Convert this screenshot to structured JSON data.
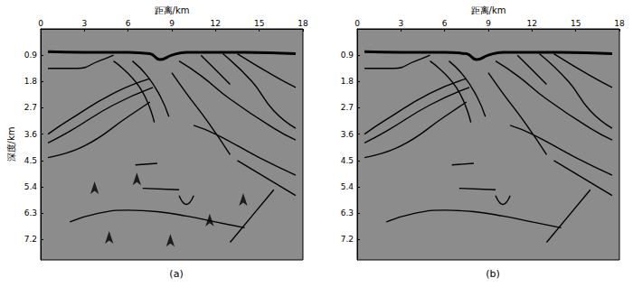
{
  "chart_data": [
    {
      "type": "line",
      "title": "(a)",
      "xlabel": "距离/km",
      "ylabel": "深度/km",
      "xlim": [
        0,
        18
      ],
      "xticks": [
        0,
        3,
        6,
        9,
        12,
        15,
        18
      ],
      "ylim": [
        0,
        7.9
      ],
      "yticks": [
        0.9,
        1.8,
        2.7,
        3.6,
        4.5,
        5.4,
        6.3,
        7.2
      ],
      "series": [
        {
          "color": "#000000",
          "values": [
            [
              0.5,
              0.78
            ],
            [
              3,
              0.8
            ],
            [
              6,
              0.8
            ],
            [
              7.5,
              0.85
            ],
            [
              8.2,
              1.05
            ],
            [
              9,
              0.9
            ],
            [
              10,
              0.8
            ],
            [
              12,
              0.8
            ],
            [
              14,
              0.8
            ],
            [
              17.5,
              0.85
            ]
          ]
        },
        {
          "color": "#000000",
          "values": [
            [
              0.5,
              1.35
            ],
            [
              2.5,
              1.35
            ],
            [
              4,
              1.1
            ],
            [
              5,
              0.9
            ]
          ]
        },
        {
          "color": "#000000",
          "values": [
            [
              7.5,
              1.7
            ],
            [
              5,
              2.2
            ],
            [
              2,
              3.1
            ],
            [
              0.5,
              3.6
            ]
          ]
        },
        {
          "color": "#000000",
          "values": [
            [
              7.7,
              2.0
            ],
            [
              5,
              2.6
            ],
            [
              2,
              3.5
            ],
            [
              0.5,
              3.9
            ]
          ]
        },
        {
          "color": "#000000",
          "values": [
            [
              7.5,
              2.5
            ],
            [
              6,
              3.0
            ],
            [
              3,
              4.0
            ],
            [
              0.5,
              4.4
            ]
          ]
        },
        {
          "color": "#000000",
          "values": [
            [
              6.3,
              1.1
            ],
            [
              7.3,
              1.6
            ],
            [
              8.2,
              2.3
            ],
            [
              8.8,
              3.0
            ]
          ]
        },
        {
          "color": "#000000",
          "values": [
            [
              5,
              1.1
            ],
            [
              6.8,
              2.0
            ],
            [
              7.8,
              3.2
            ]
          ]
        },
        {
          "color": "#000000",
          "values": [
            [
              9.5,
              1.1
            ],
            [
              11,
              1.6
            ],
            [
              13,
              2.4
            ],
            [
              16,
              3.4
            ],
            [
              17.5,
              3.8
            ]
          ]
        },
        {
          "color": "#000000",
          "values": [
            [
              9,
              1.5
            ],
            [
              10,
              2.2
            ],
            [
              11.5,
              3.2
            ],
            [
              13,
              4.3
            ]
          ]
        },
        {
          "color": "#000000",
          "values": [
            [
              11,
              0.9
            ],
            [
              12,
              1.4
            ],
            [
              13,
              1.9
            ]
          ]
        },
        {
          "color": "#000000",
          "values": [
            [
              12.5,
              0.85
            ],
            [
              14.5,
              1.8
            ],
            [
              16,
              2.8
            ],
            [
              17.5,
              3.4
            ]
          ]
        },
        {
          "color": "#000000",
          "values": [
            [
              13.5,
              0.85
            ],
            [
              16,
              1.6
            ],
            [
              17.5,
              2.0
            ]
          ]
        },
        {
          "color": "#000000",
          "values": [
            [
              10.5,
              3.3
            ],
            [
              12,
              3.6
            ],
            [
              15,
              4.4
            ],
            [
              17.5,
              5.0
            ]
          ]
        },
        {
          "color": "#000000",
          "values": [
            [
              13.5,
              4.5
            ],
            [
              17.5,
              5.7
            ]
          ]
        },
        {
          "color": "#000000",
          "values": [
            [
              6.5,
              4.65
            ],
            [
              8,
              4.6
            ]
          ]
        },
        {
          "color": "#000000",
          "values": [
            [
              7,
              5.45
            ],
            [
              9.5,
              5.5
            ]
          ]
        },
        {
          "color": "#000000",
          "values": [
            [
              9.5,
              5.7
            ],
            [
              10,
              6.0
            ],
            [
              10.5,
              5.7
            ]
          ]
        },
        {
          "color": "#000000",
          "values": [
            [
              2,
              6.6
            ],
            [
              4,
              6.3
            ],
            [
              6,
              6.2
            ],
            [
              8,
              6.25
            ],
            [
              10,
              6.4
            ],
            [
              12,
              6.6
            ],
            [
              14,
              6.8
            ]
          ]
        },
        {
          "color": "#000000",
          "values": [
            [
              13,
              7.3
            ],
            [
              14.5,
              6.4
            ],
            [
              16,
              5.5
            ]
          ]
        }
      ],
      "arrows": [
        [
          3.7,
          5.0
        ],
        [
          6.6,
          4.7
        ],
        [
          13.9,
          5.4
        ],
        [
          11.6,
          6.1
        ],
        [
          4.7,
          6.7
        ],
        [
          8.9,
          6.8
        ]
      ]
    },
    {
      "type": "line",
      "title": "(b)",
      "xlabel": "距离/km",
      "xlim": [
        0,
        18
      ],
      "xticks": [
        0,
        3,
        6,
        9,
        12,
        15,
        18
      ],
      "ylim": [
        0,
        7.9
      ],
      "yticks": [
        0.9,
        1.8,
        2.7,
        3.6,
        4.5,
        5.4,
        6.3,
        7.2
      ],
      "series": [
        {
          "color": "#000000",
          "values": [
            [
              0.5,
              0.78
            ],
            [
              3,
              0.8
            ],
            [
              6,
              0.8
            ],
            [
              7.5,
              0.85
            ],
            [
              8.2,
              1.05
            ],
            [
              9,
              0.9
            ],
            [
              10,
              0.8
            ],
            [
              12,
              0.8
            ],
            [
              14,
              0.8
            ],
            [
              17.5,
              0.85
            ]
          ]
        },
        {
          "color": "#000000",
          "values": [
            [
              0.5,
              1.35
            ],
            [
              2.5,
              1.35
            ],
            [
              4,
              1.1
            ],
            [
              5,
              0.9
            ]
          ]
        },
        {
          "color": "#000000",
          "values": [
            [
              7.5,
              1.7
            ],
            [
              5,
              2.2
            ],
            [
              2,
              3.1
            ],
            [
              0.5,
              3.6
            ]
          ]
        },
        {
          "color": "#000000",
          "values": [
            [
              7.7,
              2.0
            ],
            [
              5,
              2.6
            ],
            [
              2,
              3.5
            ],
            [
              0.5,
              3.9
            ]
          ]
        },
        {
          "color": "#000000",
          "values": [
            [
              7.5,
              2.5
            ],
            [
              6,
              3.0
            ],
            [
              3,
              4.0
            ],
            [
              0.5,
              4.4
            ]
          ]
        },
        {
          "color": "#000000",
          "values": [
            [
              6.3,
              1.1
            ],
            [
              7.3,
              1.6
            ],
            [
              8.2,
              2.3
            ],
            [
              8.8,
              3.0
            ]
          ]
        },
        {
          "color": "#000000",
          "values": [
            [
              5,
              1.1
            ],
            [
              6.8,
              2.0
            ],
            [
              7.8,
              3.2
            ]
          ]
        },
        {
          "color": "#000000",
          "values": [
            [
              9.5,
              1.1
            ],
            [
              11,
              1.6
            ],
            [
              13,
              2.4
            ],
            [
              16,
              3.4
            ],
            [
              17.5,
              3.8
            ]
          ]
        },
        {
          "color": "#000000",
          "values": [
            [
              9,
              1.5
            ],
            [
              10,
              2.2
            ],
            [
              11.5,
              3.2
            ],
            [
              13,
              4.3
            ]
          ]
        },
        {
          "color": "#000000",
          "values": [
            [
              11,
              0.9
            ],
            [
              12,
              1.4
            ],
            [
              13,
              1.9
            ]
          ]
        },
        {
          "color": "#000000",
          "values": [
            [
              12.5,
              0.85
            ],
            [
              14.5,
              1.8
            ],
            [
              16,
              2.8
            ],
            [
              17.5,
              3.4
            ]
          ]
        },
        {
          "color": "#000000",
          "values": [
            [
              13.5,
              0.85
            ],
            [
              16,
              1.6
            ],
            [
              17.5,
              2.0
            ]
          ]
        },
        {
          "color": "#000000",
          "values": [
            [
              10.5,
              3.3
            ],
            [
              12,
              3.6
            ],
            [
              15,
              4.4
            ],
            [
              17.5,
              5.0
            ]
          ]
        },
        {
          "color": "#000000",
          "values": [
            [
              13.5,
              4.5
            ],
            [
              17.5,
              5.7
            ]
          ]
        },
        {
          "color": "#000000",
          "values": [
            [
              6.5,
              4.65
            ],
            [
              8,
              4.6
            ]
          ]
        },
        {
          "color": "#000000",
          "values": [
            [
              7,
              5.45
            ],
            [
              9.5,
              5.5
            ]
          ]
        },
        {
          "color": "#000000",
          "values": [
            [
              9.5,
              5.7
            ],
            [
              10,
              6.0
            ],
            [
              10.5,
              5.7
            ]
          ]
        },
        {
          "color": "#000000",
          "values": [
            [
              2,
              6.6
            ],
            [
              4,
              6.3
            ],
            [
              6,
              6.2
            ],
            [
              8,
              6.25
            ],
            [
              10,
              6.4
            ],
            [
              12,
              6.6
            ],
            [
              14,
              6.8
            ]
          ]
        },
        {
          "color": "#000000",
          "values": [
            [
              13,
              7.3
            ],
            [
              14.5,
              6.4
            ],
            [
              16,
              5.5
            ]
          ]
        }
      ]
    }
  ]
}
